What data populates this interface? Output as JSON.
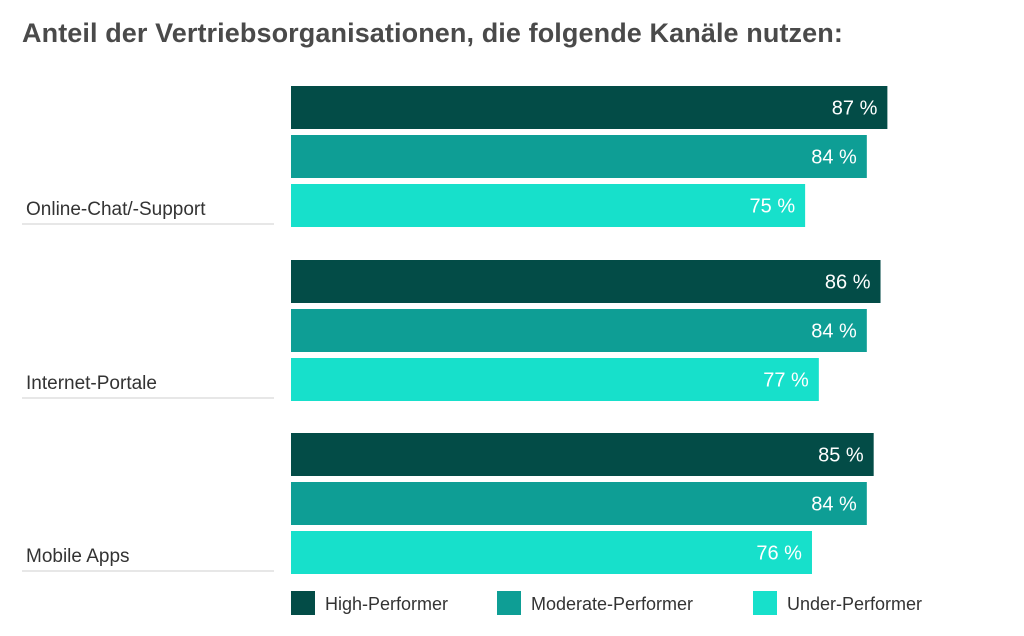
{
  "chart_data": {
    "type": "bar",
    "orientation": "horizontal",
    "title": "Anteil der Vertriebsorganisationen, die folgende Kanäle nutzen:",
    "categories": [
      "Online-Chat/-Support",
      "Internet-Portale",
      "Mobile Apps"
    ],
    "series": [
      {
        "name": "High-Performer",
        "values": [
          87,
          86,
          85
        ],
        "color": "#034c47"
      },
      {
        "name": "Moderate-Performer",
        "values": [
          84,
          84,
          84
        ],
        "color": "#0e9e95"
      },
      {
        "name": "Under-Performer",
        "values": [
          75,
          77,
          76
        ],
        "color": "#17e0cb"
      }
    ],
    "value_suffix": " %",
    "xlim": [
      0,
      100
    ],
    "grid": false,
    "legend_position": "bottom-right"
  }
}
